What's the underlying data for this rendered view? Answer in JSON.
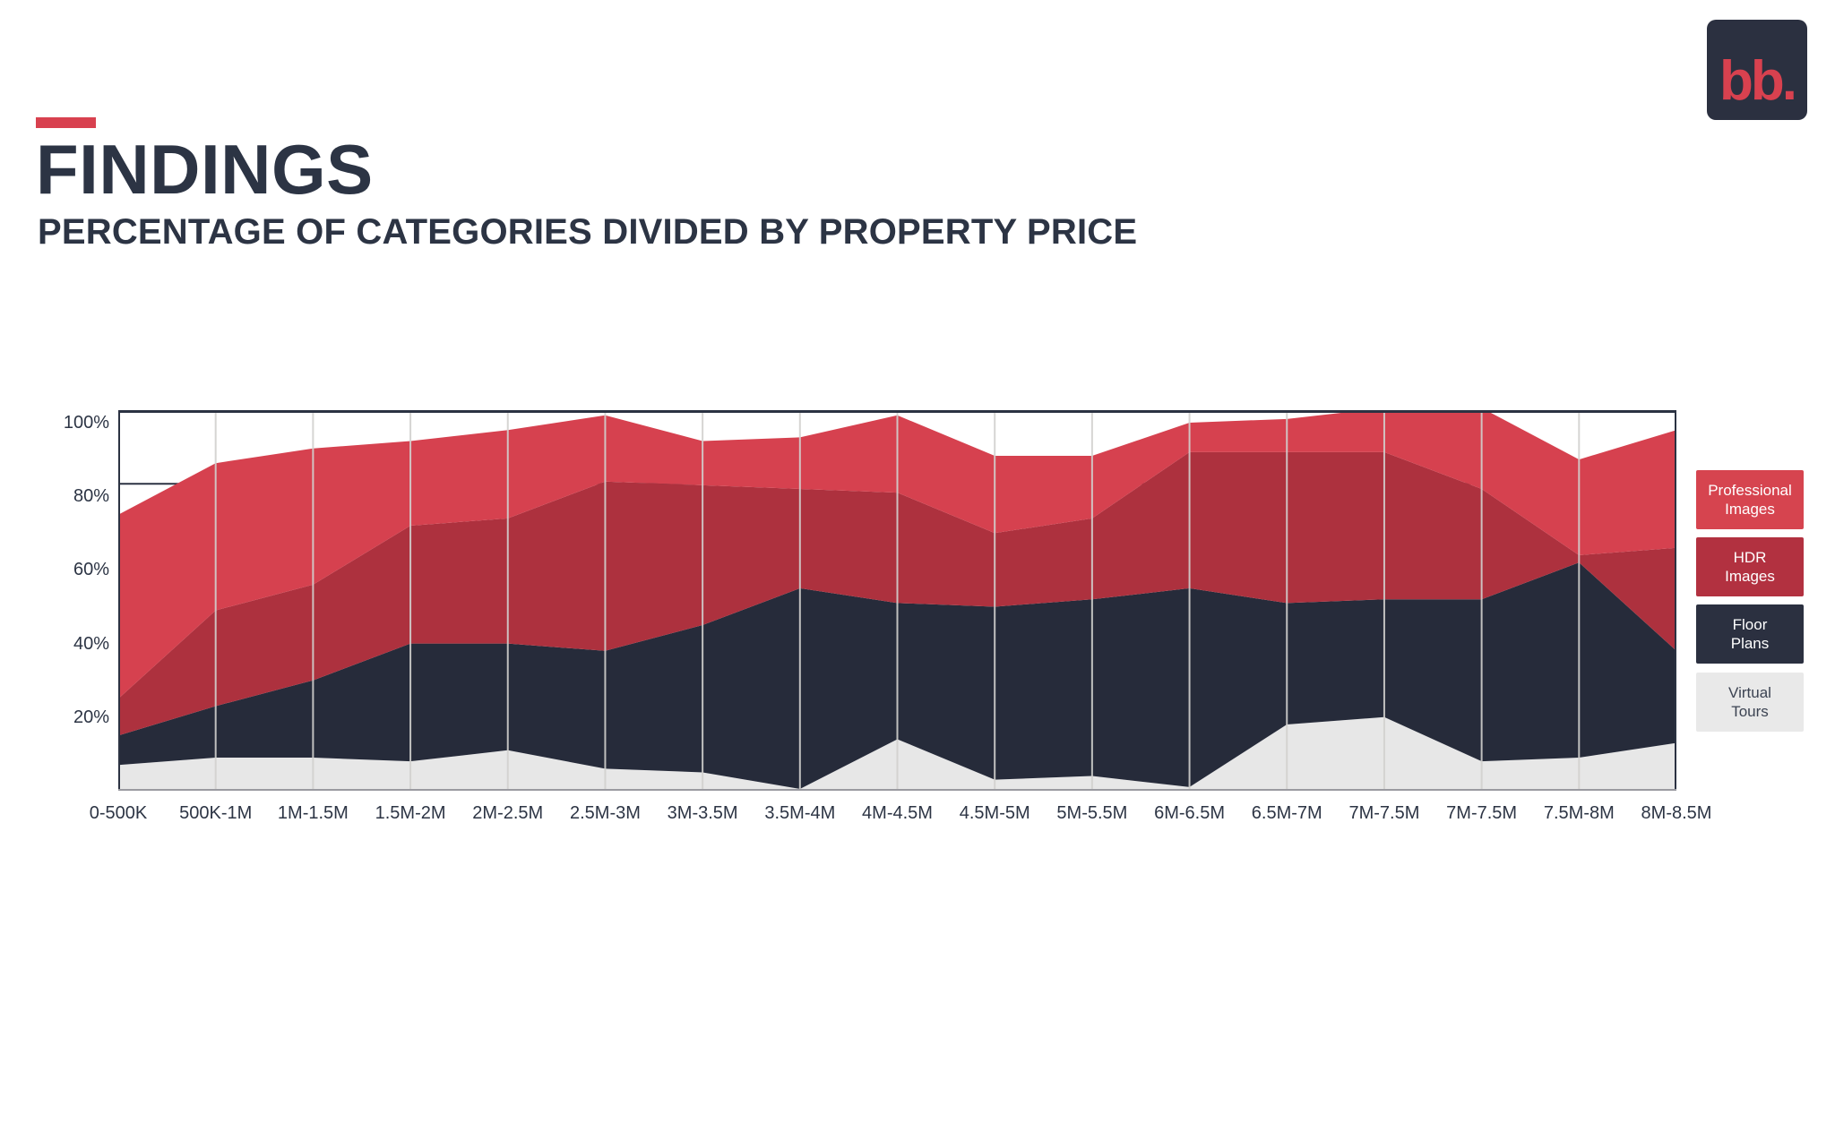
{
  "slide": {
    "title": "FINDINGS",
    "subtitle": "PERCENTAGE OF CATEGORIES DIVIDED BY PROPERTY PRICE",
    "logo_text": "bb.",
    "accent_color": "#d8414f",
    "text_color": "#2c3444",
    "logo_bg": "#2b3040",
    "logo_fg": "#d8414f"
  },
  "chart_data": {
    "type": "area",
    "stacked": true,
    "unit": "%",
    "title": "",
    "xlabel": "",
    "ylabel": "",
    "ylim": [
      0,
      103.4
    ],
    "grid": "vertical-category-lines",
    "partial_gridline_percent": 83.4,
    "frame_color": "#2b3242",
    "bottom_axis_color": "#9a9aa0",
    "gridline_color": "#d2d0ce",
    "categories": [
      "0-500K",
      "500K-1M",
      "1M-1.5M",
      "1.5M-2M",
      "2M-2.5M",
      "2.5M-3M",
      "3M-3.5M",
      "3.5M-4M",
      "4M-4.5M",
      "4.5M-5M",
      "5M-5.5M",
      "6M-6.5M",
      "6.5M-7M",
      "7M-7.5M",
      "7M-7.5M",
      "7.5M-8M",
      "8M-8.5M"
    ],
    "series": [
      {
        "name": "Virtual Tours",
        "color": "#e7e7e7",
        "values": [
          7,
          9,
          9,
          8,
          11,
          6,
          5,
          0.5,
          14,
          3,
          4,
          1,
          18,
          20,
          8,
          9,
          13
        ]
      },
      {
        "name": "Floor Plans",
        "color": "#262b3a",
        "values": [
          8,
          14,
          21,
          32,
          29,
          32,
          40,
          54.5,
          37,
          47,
          48,
          54,
          33,
          32,
          44,
          53,
          25
        ]
      },
      {
        "name": "HDR Images",
        "color": "#ad313e",
        "values": [
          10,
          26,
          26,
          32,
          34,
          46,
          38,
          27,
          30,
          20,
          22,
          37,
          41,
          40,
          30,
          2,
          28
        ]
      },
      {
        "name": "Professional Images",
        "color": "#d6414f",
        "values": [
          50,
          40,
          37,
          23,
          24,
          18,
          12,
          14,
          21,
          21,
          17,
          8,
          9,
          12,
          22,
          26,
          32
        ]
      }
    ],
    "y_axis": {
      "ticks": [
        {
          "label": "100%",
          "value": 100
        },
        {
          "label": "80%",
          "value": 80
        },
        {
          "label": "60%",
          "value": 60
        },
        {
          "label": "40%",
          "value": 40
        },
        {
          "label": "20%",
          "value": 20
        }
      ]
    },
    "legend": {
      "position": "right",
      "items": [
        {
          "label": "Professional\nImages",
          "bg": "#d6444f",
          "fg": "#ffffff"
        },
        {
          "label": "HDR\nImages",
          "bg": "#b23140",
          "fg": "#ffffff"
        },
        {
          "label": "Floor\nPlans",
          "bg": "#2b3040",
          "fg": "#ffffff"
        },
        {
          "label": "Virtual\nTours",
          "bg": "#e9e9e9",
          "fg": "#3c4352"
        }
      ]
    }
  }
}
